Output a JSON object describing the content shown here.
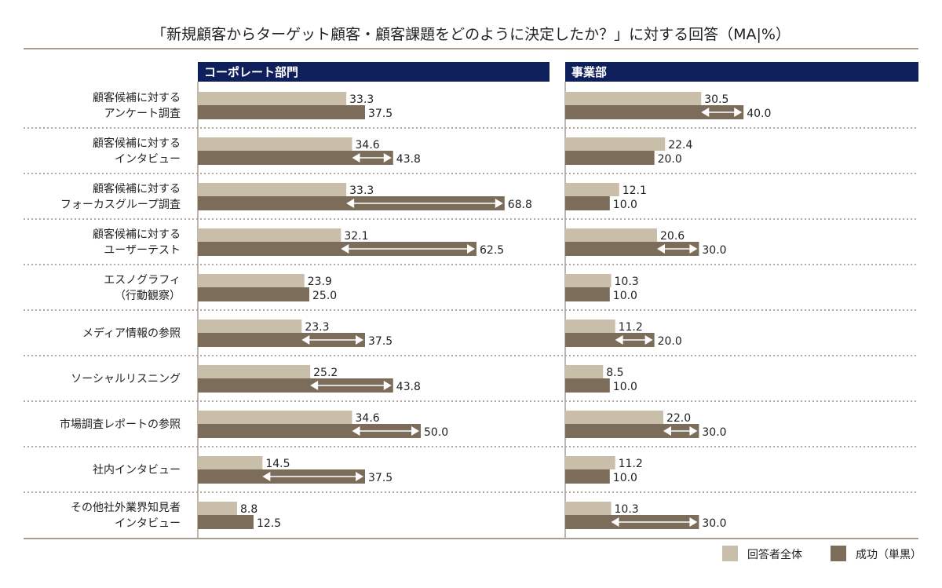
{
  "chart_data": {
    "type": "bar",
    "orientation": "horizontal",
    "title": "「新規顧客からターゲット顧客・顧客課題をどのように決定したか？」に対する回答（MA|%）",
    "categories": [
      [
        "顧客候補に対する",
        "アンケート調査"
      ],
      [
        "顧客候補に対する",
        "インタビュー"
      ],
      [
        "顧客候補に対する",
        "フォーカスグループ調査"
      ],
      [
        "顧客候補に対する",
        "ユーザーテスト"
      ],
      [
        "エスノグラフィ",
        "（行動観察）"
      ],
      [
        "メディア情報の参照"
      ],
      [
        "ソーシャルリスニング"
      ],
      [
        "市場調査レポートの参照"
      ],
      [
        "社内インタビュー"
      ],
      [
        "その他社外業界知見者",
        "インタビュー"
      ]
    ],
    "legend": [
      {
        "name": "回答者全体",
        "color": "#c8beaa"
      },
      {
        "name": "成功（単黒）",
        "color": "#7c6d5a"
      }
    ],
    "legend_position": "bottom-right",
    "panels": [
      {
        "title": "コーポレート部門",
        "series": [
          {
            "name": "回答者全体",
            "values": [
              33.3,
              34.6,
              33.3,
              32.1,
              23.9,
              23.3,
              25.2,
              34.6,
              14.5,
              8.8
            ]
          },
          {
            "name": "成功（単黒）",
            "values": [
              37.5,
              43.8,
              68.8,
              62.5,
              25.0,
              37.5,
              43.8,
              50.0,
              37.5,
              12.5
            ]
          }
        ],
        "difference_arrows": [
          false,
          true,
          true,
          true,
          false,
          true,
          true,
          true,
          true,
          false
        ]
      },
      {
        "title": "事業部",
        "series": [
          {
            "name": "回答者全体",
            "values": [
              30.5,
              22.4,
              12.1,
              20.6,
              10.3,
              11.2,
              8.5,
              22.0,
              11.2,
              10.3
            ]
          },
          {
            "name": "成功（単黒）",
            "values": [
              40.0,
              20.0,
              10.0,
              30.0,
              10.0,
              20.0,
              10.0,
              30.0,
              10.0,
              30.0
            ]
          }
        ],
        "difference_arrows": [
          true,
          false,
          false,
          true,
          false,
          true,
          false,
          true,
          false,
          true
        ]
      }
    ],
    "xlim": [
      0,
      80
    ],
    "grid": false,
    "colors": {
      "header": "#0f1f5c",
      "rule": "#a89e92",
      "separator": "#9a9088"
    }
  }
}
